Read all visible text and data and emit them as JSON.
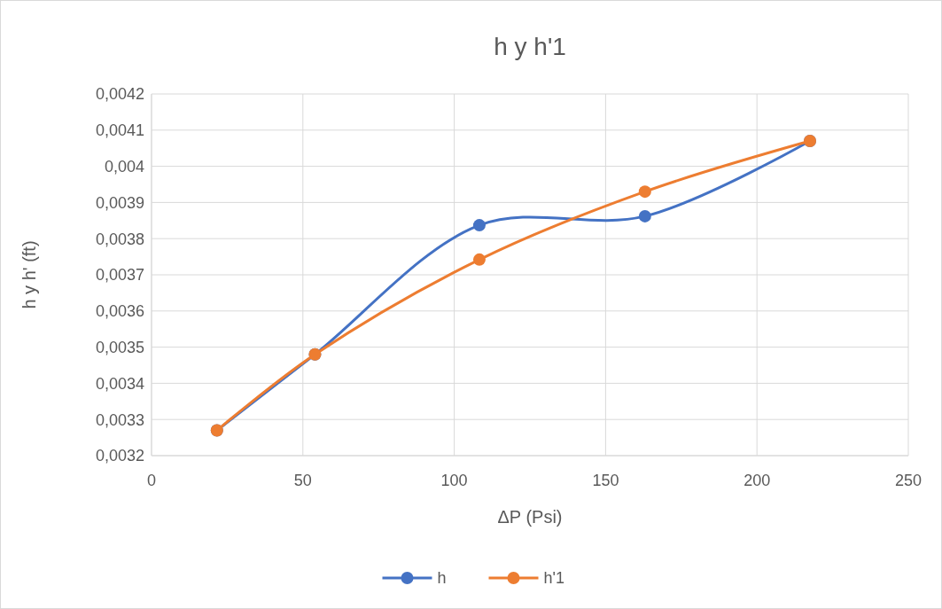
{
  "chart_data": {
    "type": "line",
    "title": "h y h'1",
    "xlabel": "ΔP (Psi)",
    "ylabel": "h y h' (ft)",
    "x": [
      21.6,
      54,
      108.3,
      163,
      217.5
    ],
    "series": [
      {
        "name": "h",
        "color": "#4472c4",
        "values": [
          0.00327,
          0.00348,
          0.003837,
          0.003862,
          0.00407
        ]
      },
      {
        "name": "h'1",
        "color": "#ed7d31",
        "values": [
          0.00327,
          0.00348,
          0.003742,
          0.00393,
          0.00407
        ]
      }
    ],
    "xlim": [
      0,
      250
    ],
    "xticks": [
      0,
      50,
      100,
      150,
      200,
      250
    ],
    "ylim": [
      0.0032,
      0.0042
    ],
    "yticks": [
      {
        "value": 0.0032,
        "label": "0,0032"
      },
      {
        "value": 0.0033,
        "label": "0,0033"
      },
      {
        "value": 0.0034,
        "label": "0,0034"
      },
      {
        "value": 0.0035,
        "label": "0,0035"
      },
      {
        "value": 0.0036,
        "label": "0,0036"
      },
      {
        "value": 0.0037,
        "label": "0,0037"
      },
      {
        "value": 0.0038,
        "label": "0,0038"
      },
      {
        "value": 0.0039,
        "label": "0,0039"
      },
      {
        "value": 0.004,
        "label": "0,004"
      },
      {
        "value": 0.0041,
        "label": "0,0041"
      },
      {
        "value": 0.0042,
        "label": "0,0042"
      }
    ],
    "grid": true,
    "legend": "bottom",
    "marker": "circle",
    "line_style": "solid"
  }
}
